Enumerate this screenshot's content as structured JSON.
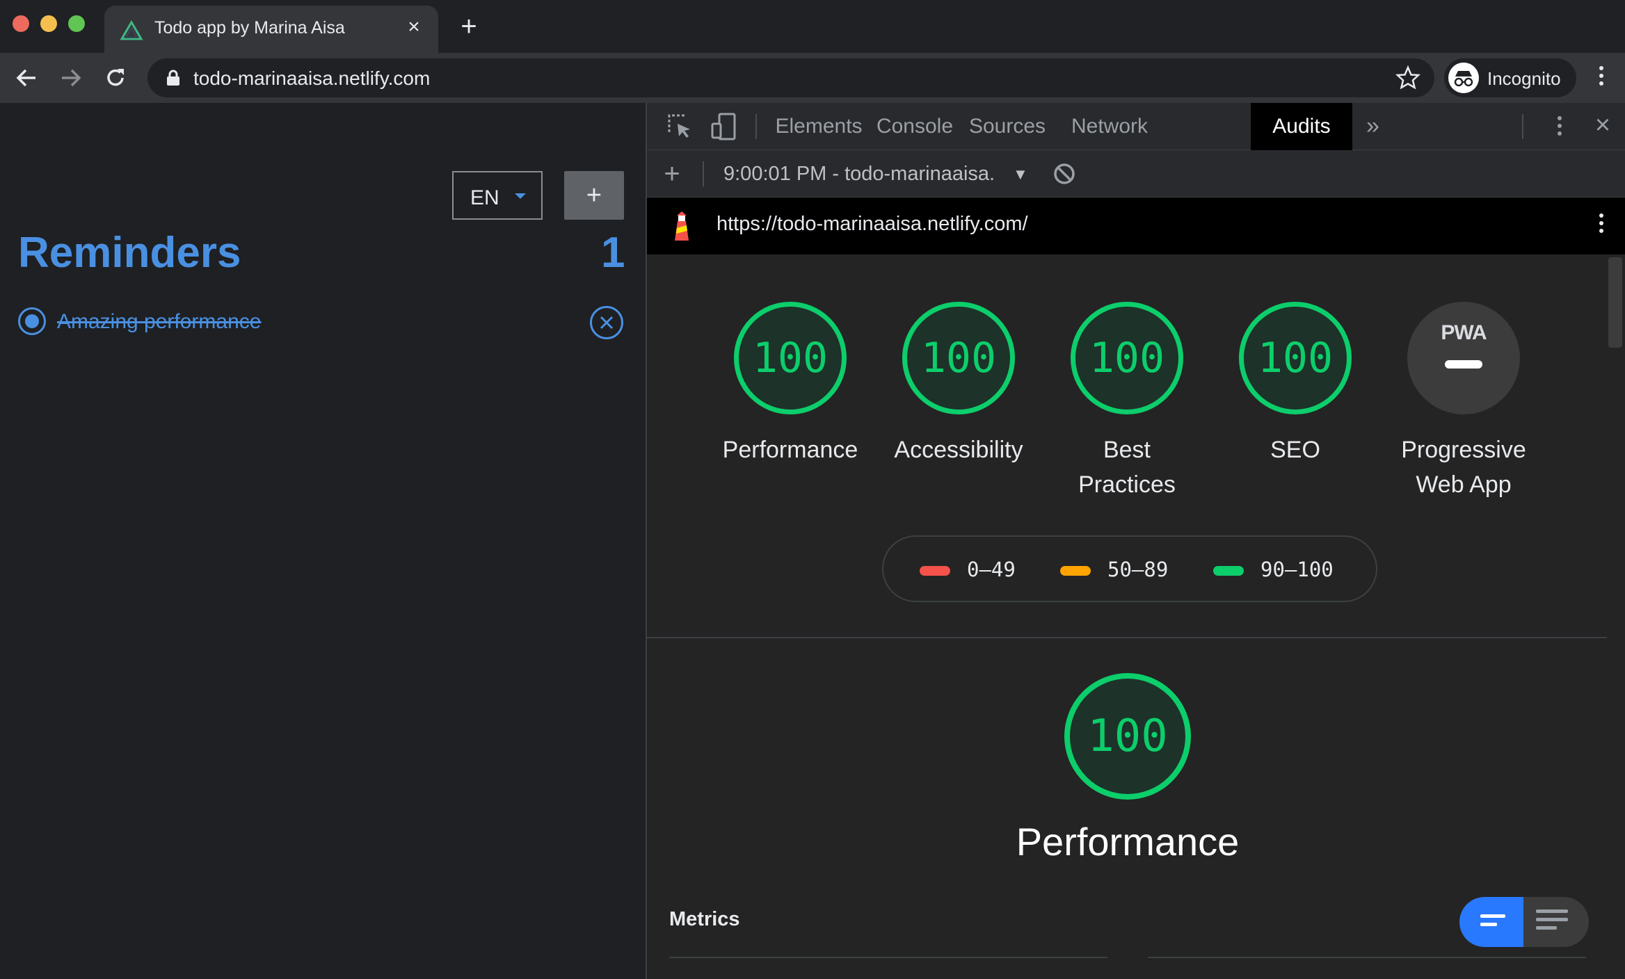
{
  "browser": {
    "tab_title": "Todo app by Marina Aisa",
    "url": "todo-marinaaisa.netlify.com",
    "profile_label": "Incognito"
  },
  "app": {
    "language": "EN",
    "add_label": "+",
    "title": "Reminders",
    "count": "1",
    "todos": [
      {
        "text": "Amazing performance",
        "done": true
      }
    ],
    "accent_color": "#4a90e2"
  },
  "devtools": {
    "tabs": [
      "Elements",
      "Console",
      "Sources",
      "Network",
      "Audits"
    ],
    "active_tab": "Audits",
    "more_label": "»",
    "report_label": "9:00:01 PM - todo-marinaaisa.",
    "audited_url": "https://todo-marinaaisa.netlify.com/",
    "scores": [
      {
        "label": "Performance",
        "value": "100"
      },
      {
        "label": "Accessibility",
        "value": "100"
      },
      {
        "label": "Best Practices",
        "value": "100"
      },
      {
        "label": "SEO",
        "value": "100"
      }
    ],
    "pwa": {
      "badge": "PWA",
      "label": "Progressive Web App"
    },
    "legend": [
      {
        "range": "0–49",
        "color": "#f4524a"
      },
      {
        "range": "50–89",
        "color": "#ffa400"
      },
      {
        "range": "90–100",
        "color": "#0cce6b"
      }
    ],
    "section": {
      "score": "100",
      "title": "Performance"
    },
    "metrics_label": "Metrics"
  }
}
